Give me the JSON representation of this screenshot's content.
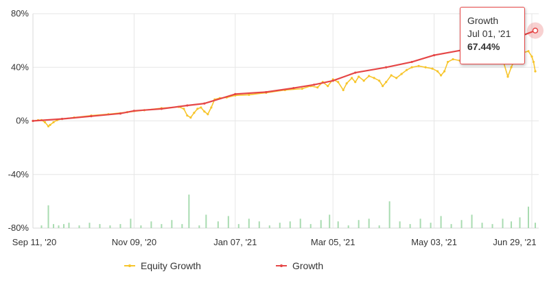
{
  "chart_data": {
    "type": "line",
    "title": "",
    "xlabel": "",
    "ylabel": "",
    "ylim": [
      -80,
      80
    ],
    "y_ticks": [
      "80%",
      "40%",
      "0%",
      "-40%",
      "-80%"
    ],
    "y_tick_values": [
      80,
      40,
      0,
      -40,
      -80
    ],
    "x_range": [
      "2020-09-11",
      "2021-07-03"
    ],
    "x_ticks": [
      "Sep 11, '20",
      "Nov 09, '20",
      "Jan 07, '21",
      "Mar 05, '21",
      "May 03, '21",
      "Jun 29, '21"
    ],
    "x_tick_dates": [
      "2020-09-11",
      "2020-11-09",
      "2021-01-07",
      "2021-03-05",
      "2021-05-03",
      "2021-06-29"
    ],
    "grid": true,
    "legend_position": "bottom",
    "series": [
      {
        "name": "Equity Growth",
        "color": "#f7c52b",
        "points": [
          [
            "2020-09-11",
            0
          ],
          [
            "2020-09-14",
            0.5
          ],
          [
            "2020-09-16",
            0.6
          ],
          [
            "2020-09-18",
            -1.0
          ],
          [
            "2020-09-20",
            -4.0
          ],
          [
            "2020-09-21",
            -3.0
          ],
          [
            "2020-09-23",
            -1.0
          ],
          [
            "2020-09-25",
            0.5
          ],
          [
            "2020-09-28",
            1.5
          ],
          [
            "2020-10-05",
            2.5
          ],
          [
            "2020-10-15",
            4.0
          ],
          [
            "2020-10-25",
            5.0
          ],
          [
            "2020-11-05",
            6.5
          ],
          [
            "2020-11-15",
            8.0
          ],
          [
            "2020-11-25",
            9.5
          ],
          [
            "2020-12-05",
            10.5
          ],
          [
            "2020-12-08",
            9.0
          ],
          [
            "2020-12-10",
            4.0
          ],
          [
            "2020-12-12",
            2.5
          ],
          [
            "2020-12-14",
            6.0
          ],
          [
            "2020-12-16",
            9.0
          ],
          [
            "2020-12-18",
            10.0
          ],
          [
            "2020-12-20",
            7.0
          ],
          [
            "2020-12-22",
            5.0
          ],
          [
            "2020-12-24",
            10.0
          ],
          [
            "2020-12-26",
            16.0
          ],
          [
            "2020-12-29",
            17.0
          ],
          [
            "2021-01-02",
            17.5
          ],
          [
            "2021-01-07",
            19.0
          ],
          [
            "2021-01-15",
            19.5
          ],
          [
            "2021-01-25",
            21.0
          ],
          [
            "2021-02-05",
            23.0
          ],
          [
            "2021-02-15",
            24.0
          ],
          [
            "2021-02-20",
            26.0
          ],
          [
            "2021-02-24",
            25.0
          ],
          [
            "2021-02-27",
            29.0
          ],
          [
            "2021-03-02",
            26.0
          ],
          [
            "2021-03-05",
            31.0
          ],
          [
            "2021-03-08",
            29.0
          ],
          [
            "2021-03-11",
            23.0
          ],
          [
            "2021-03-13",
            28.0
          ],
          [
            "2021-03-16",
            32.0
          ],
          [
            "2021-03-18",
            29.0
          ],
          [
            "2021-03-20",
            33.0
          ],
          [
            "2021-03-23",
            30.0
          ],
          [
            "2021-03-26",
            33.5
          ],
          [
            "2021-03-29",
            32.0
          ],
          [
            "2021-04-01",
            30.0
          ],
          [
            "2021-04-03",
            26.0
          ],
          [
            "2021-04-05",
            29.0
          ],
          [
            "2021-04-08",
            34.0
          ],
          [
            "2021-04-11",
            32.0
          ],
          [
            "2021-04-14",
            35.0
          ],
          [
            "2021-04-17",
            38.0
          ],
          [
            "2021-04-20",
            40.0
          ],
          [
            "2021-04-24",
            41.0
          ],
          [
            "2021-04-28",
            40.0
          ],
          [
            "2021-05-02",
            39.0
          ],
          [
            "2021-05-05",
            37.0
          ],
          [
            "2021-05-07",
            34.0
          ],
          [
            "2021-05-09",
            37.0
          ],
          [
            "2021-05-11",
            44.0
          ],
          [
            "2021-05-14",
            46.0
          ],
          [
            "2021-05-18",
            45.0
          ],
          [
            "2021-05-22",
            46.0
          ],
          [
            "2021-05-26",
            47.0
          ],
          [
            "2021-05-30",
            46.5
          ],
          [
            "2021-06-03",
            47.5
          ],
          [
            "2021-06-08",
            48.0
          ],
          [
            "2021-06-12",
            46.0
          ],
          [
            "2021-06-15",
            33.0
          ],
          [
            "2021-06-17",
            40.0
          ],
          [
            "2021-06-19",
            46.0
          ],
          [
            "2021-06-22",
            49.0
          ],
          [
            "2021-06-24",
            51.0
          ],
          [
            "2021-06-27",
            52.0
          ],
          [
            "2021-06-29",
            48.0
          ],
          [
            "2021-06-30",
            44.0
          ],
          [
            "2021-07-01",
            37.0
          ]
        ]
      },
      {
        "name": "Growth",
        "color": "#e54646",
        "points": [
          [
            "2020-09-11",
            0
          ],
          [
            "2020-09-28",
            1.5
          ],
          [
            "2020-10-15",
            3.5
          ],
          [
            "2020-11-01",
            5.5
          ],
          [
            "2020-11-09",
            7.5
          ],
          [
            "2020-11-25",
            9.0
          ],
          [
            "2020-12-10",
            11.5
          ],
          [
            "2020-12-20",
            13.0
          ],
          [
            "2021-01-07",
            20.0
          ],
          [
            "2021-01-25",
            21.5
          ],
          [
            "2021-02-10",
            24.5
          ],
          [
            "2021-02-22",
            27.0
          ],
          [
            "2021-03-05",
            30.0
          ],
          [
            "2021-03-18",
            36.0
          ],
          [
            "2021-04-05",
            40.0
          ],
          [
            "2021-04-20",
            44.0
          ],
          [
            "2021-05-03",
            49.0
          ],
          [
            "2021-05-20",
            53.0
          ],
          [
            "2021-05-27",
            55.0
          ],
          [
            "2021-06-10",
            58.0
          ],
          [
            "2021-06-20",
            62.0
          ],
          [
            "2021-07-01",
            67.44
          ]
        ]
      }
    ],
    "volume_bars": {
      "color": "#a8dbb0",
      "dates": [
        "2020-09-16",
        "2020-09-20",
        "2020-09-23",
        "2020-09-26",
        "2020-09-29",
        "2020-10-02",
        "2020-10-08",
        "2020-10-14",
        "2020-10-20",
        "2020-10-26",
        "2020-11-01",
        "2020-11-07",
        "2020-11-13",
        "2020-11-19",
        "2020-11-25",
        "2020-12-01",
        "2020-12-07",
        "2020-12-11",
        "2020-12-17",
        "2020-12-21",
        "2020-12-28",
        "2021-01-03",
        "2021-01-09",
        "2021-01-15",
        "2021-01-21",
        "2021-01-27",
        "2021-02-02",
        "2021-02-08",
        "2021-02-14",
        "2021-02-20",
        "2021-02-26",
        "2021-03-03",
        "2021-03-08",
        "2021-03-14",
        "2021-03-20",
        "2021-03-26",
        "2021-04-01",
        "2021-04-07",
        "2021-04-13",
        "2021-04-19",
        "2021-04-25",
        "2021-05-01",
        "2021-05-07",
        "2021-05-13",
        "2021-05-19",
        "2021-05-25",
        "2021-05-31",
        "2021-06-06",
        "2021-06-12",
        "2021-06-17",
        "2021-06-22",
        "2021-06-27",
        "2021-07-01"
      ],
      "values": [
        -78,
        -63,
        -77,
        -78,
        -77,
        -76,
        -78,
        -76,
        -77,
        -78,
        -77,
        -73,
        -78,
        -75,
        -77,
        -74,
        -77,
        -55,
        -78,
        -70,
        -75,
        -71,
        -77,
        -73,
        -75,
        -78,
        -76,
        -75,
        -73,
        -77,
        -74,
        -70,
        -75,
        -78,
        -74,
        -73,
        -78,
        -60,
        -75,
        -77,
        -73,
        -76,
        -71,
        -77,
        -74,
        -70,
        -76,
        -77,
        -73,
        -75,
        -72,
        -64,
        -76
      ]
    }
  },
  "tooltip": {
    "series_name": "Growth",
    "date": "Jul 01, '21",
    "value": "67.44%"
  }
}
